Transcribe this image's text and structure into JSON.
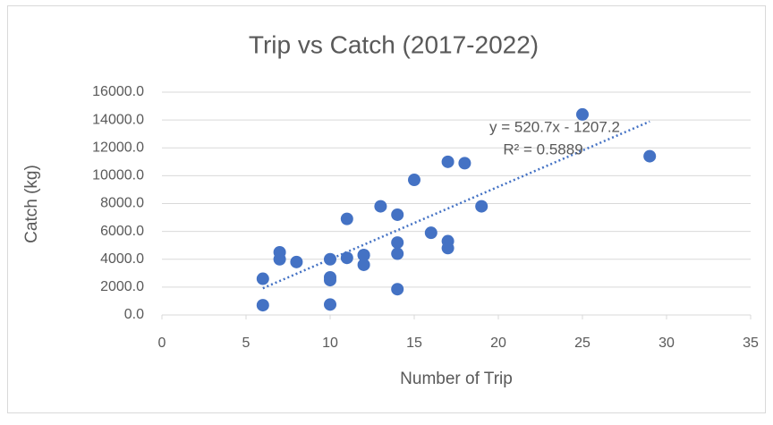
{
  "chart_data": {
    "type": "scatter",
    "title": "Trip vs Catch (2017-2022)",
    "x_label": "Number of Trip",
    "y_label": "Catch (kg)",
    "color": "#4472c4",
    "x": [
      6,
      6,
      7,
      7,
      8,
      10,
      10,
      10,
      10,
      11,
      11,
      12,
      12,
      12,
      13,
      14,
      14,
      14,
      14,
      15,
      16,
      17,
      17,
      17,
      18,
      19,
      25,
      29
    ],
    "values": [
      2600,
      700,
      4500,
      4000,
      3800,
      4000,
      2700,
      2500,
      750,
      6900,
      4100,
      4300,
      3600,
      4300,
      7800,
      7200,
      5200,
      4400,
      1850,
      9700,
      5900,
      11000,
      5300,
      4800,
      10900,
      7800,
      14400,
      11400
    ],
    "xlim": [
      0,
      35
    ],
    "xticks": [
      0,
      5,
      10,
      15,
      20,
      25,
      30,
      35
    ],
    "ylim": [
      0,
      16000
    ],
    "yticks": [
      {
        "value": 0,
        "label": "0.0"
      },
      {
        "value": 2000,
        "label": "2000.0"
      },
      {
        "value": 4000,
        "label": "4000.0"
      },
      {
        "value": 6000,
        "label": "6000.0"
      },
      {
        "value": 8000,
        "label": "8000.0"
      },
      {
        "value": 10000,
        "label": "10000.0"
      },
      {
        "value": 12000,
        "label": "12000.0"
      },
      {
        "value": 14000,
        "label": "14000.0"
      },
      {
        "value": 16000,
        "label": "16000.0"
      }
    ],
    "grid": true,
    "trendline": {
      "slope": 520.7,
      "intercept": -1207.2,
      "equation": "y = 520.7x - 1207.2",
      "r2_label": "R² = 0.5889"
    }
  }
}
